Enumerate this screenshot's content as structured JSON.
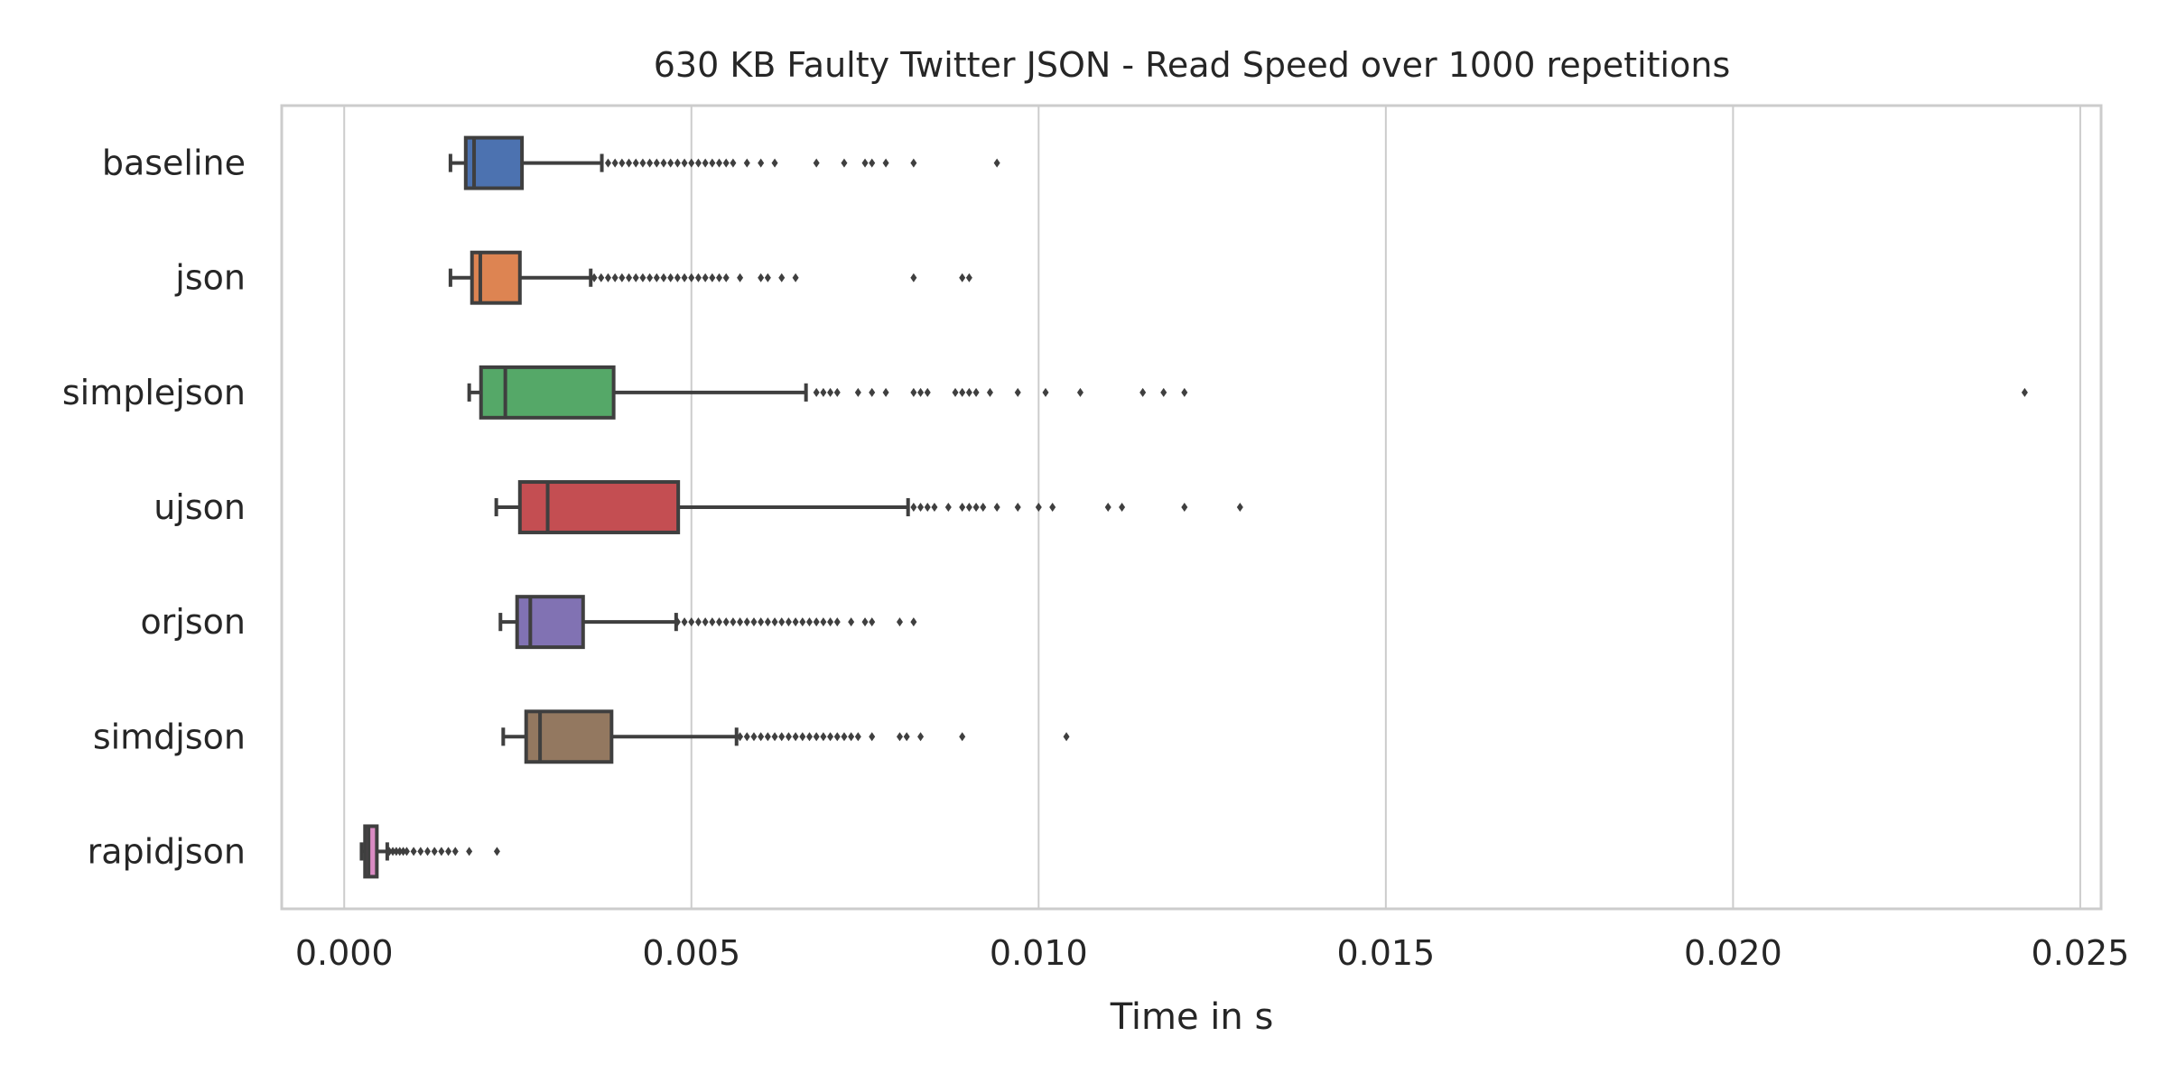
{
  "chart_data": {
    "type": "box",
    "orientation": "horizontal",
    "title": "630 KB Faulty Twitter JSON - Read Speed over 1000 repetitions",
    "xlabel": "Time in s",
    "ylabel": "",
    "xlim": [
      -0.0009,
      0.0253
    ],
    "x_ticks": [
      0.0,
      0.005,
      0.01,
      0.015,
      0.02,
      0.025
    ],
    "x_tick_labels": [
      "0.000",
      "0.005",
      "0.010",
      "0.015",
      "0.020",
      "0.025"
    ],
    "grid": "vertical",
    "categories": [
      "baseline",
      "json",
      "simplejson",
      "ujson",
      "orjson",
      "simdjson",
      "rapidjson"
    ],
    "series": [
      {
        "category": "baseline",
        "color": "#4c72b0",
        "whisker_low": 0.00153,
        "q1": 0.00175,
        "median": 0.00187,
        "q3": 0.00256,
        "whisker_high": 0.00371,
        "outliers": [
          0.0038,
          0.0039,
          0.004,
          0.0041,
          0.0042,
          0.0043,
          0.0044,
          0.0045,
          0.0046,
          0.0047,
          0.0048,
          0.0049,
          0.005,
          0.0051,
          0.0052,
          0.0053,
          0.0054,
          0.0055,
          0.0056,
          0.0058,
          0.006,
          0.0062,
          0.0068,
          0.0072,
          0.0075,
          0.0076,
          0.0078,
          0.0082,
          0.0094
        ]
      },
      {
        "category": "json",
        "color": "#dd8452",
        "whisker_low": 0.00153,
        "q1": 0.00184,
        "median": 0.00196,
        "q3": 0.00253,
        "whisker_high": 0.00355,
        "outliers": [
          0.0036,
          0.0037,
          0.0038,
          0.0039,
          0.004,
          0.0041,
          0.0042,
          0.0043,
          0.0044,
          0.0045,
          0.0046,
          0.0047,
          0.0048,
          0.0049,
          0.005,
          0.0051,
          0.0052,
          0.0053,
          0.0054,
          0.0055,
          0.0057,
          0.006,
          0.0061,
          0.0063,
          0.0065,
          0.0082,
          0.0089,
          0.009
        ]
      },
      {
        "category": "simplejson",
        "color": "#55a868",
        "whisker_low": 0.0018,
        "q1": 0.00197,
        "median": 0.00232,
        "q3": 0.00388,
        "whisker_high": 0.00665,
        "outliers": [
          0.0068,
          0.0069,
          0.007,
          0.0071,
          0.0074,
          0.0076,
          0.0078,
          0.0082,
          0.0083,
          0.0084,
          0.0088,
          0.0089,
          0.009,
          0.0091,
          0.0093,
          0.0097,
          0.0101,
          0.0106,
          0.0115,
          0.0118,
          0.0121,
          0.0242
        ]
      },
      {
        "category": "ujson",
        "color": "#c44e52",
        "whisker_low": 0.00219,
        "q1": 0.00253,
        "median": 0.00293,
        "q3": 0.00481,
        "whisker_high": 0.00812,
        "outliers": [
          0.0082,
          0.0083,
          0.0084,
          0.0085,
          0.0087,
          0.0089,
          0.009,
          0.0091,
          0.0092,
          0.0094,
          0.0097,
          0.01,
          0.0102,
          0.011,
          0.0112,
          0.0121,
          0.0129
        ]
      },
      {
        "category": "orjson",
        "color": "#8172b3",
        "whisker_low": 0.00225,
        "q1": 0.00249,
        "median": 0.00268,
        "q3": 0.00344,
        "whisker_high": 0.00478,
        "outliers": [
          0.0048,
          0.0049,
          0.005,
          0.0051,
          0.0052,
          0.0053,
          0.0054,
          0.0055,
          0.0056,
          0.0057,
          0.0058,
          0.0059,
          0.006,
          0.0061,
          0.0062,
          0.0063,
          0.0064,
          0.0065,
          0.0066,
          0.0067,
          0.0068,
          0.0069,
          0.007,
          0.0071,
          0.0073,
          0.0075,
          0.0076,
          0.008,
          0.0082
        ]
      },
      {
        "category": "simdjson",
        "color": "#937860",
        "whisker_low": 0.00229,
        "q1": 0.00262,
        "median": 0.00282,
        "q3": 0.00385,
        "whisker_high": 0.00565,
        "outliers": [
          0.0057,
          0.0058,
          0.0059,
          0.006,
          0.0061,
          0.0062,
          0.0063,
          0.0064,
          0.0065,
          0.0066,
          0.0067,
          0.0068,
          0.0069,
          0.007,
          0.0071,
          0.0072,
          0.0073,
          0.0074,
          0.0076,
          0.008,
          0.0081,
          0.0083,
          0.0089,
          0.0104
        ]
      },
      {
        "category": "rapidjson",
        "color": "#da8bc3",
        "whisker_low": 0.00025,
        "q1": 0.0003,
        "median": 0.00035,
        "q3": 0.00047,
        "whisker_high": 0.00062,
        "outliers": [
          0.00065,
          0.0007,
          0.00075,
          0.0008,
          0.00085,
          0.0009,
          0.001,
          0.0011,
          0.0012,
          0.0013,
          0.0014,
          0.0015,
          0.0016,
          0.0018,
          0.0022
        ]
      }
    ]
  }
}
